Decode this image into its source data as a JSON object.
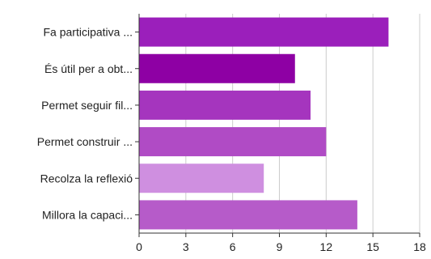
{
  "chart_data": {
    "type": "bar",
    "orientation": "horizontal",
    "categories": [
      "Fa participativa ...",
      "És útil per a obt...",
      "Permet seguir fil...",
      "Permet construir ...",
      "Recolza la reflexió",
      "Millora la capaci..."
    ],
    "values": [
      16,
      10,
      11,
      12,
      8,
      14
    ],
    "bar_colors": [
      "#9b1fbb",
      "#8e00a4",
      "#a535be",
      "#b04bc5",
      "#cf8fe0",
      "#b65bc9"
    ],
    "xlim": [
      0,
      18
    ],
    "xticks": [
      "0",
      "3",
      "6",
      "9",
      "12",
      "15",
      "18"
    ],
    "grid": true,
    "title": "",
    "xlabel": "",
    "ylabel": ""
  }
}
